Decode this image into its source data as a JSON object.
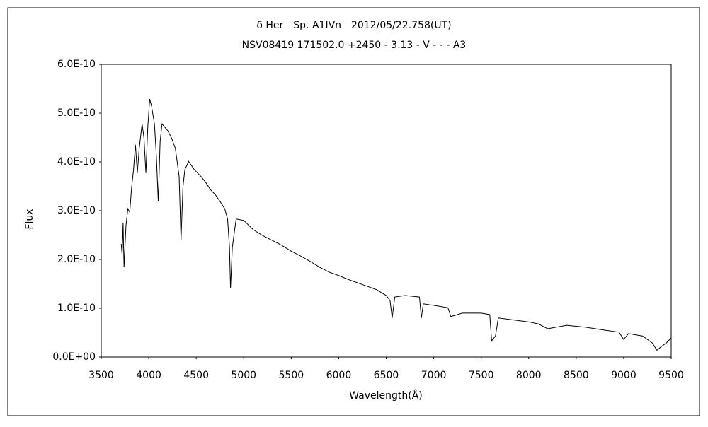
{
  "chart_data": {
    "type": "line",
    "title": "δ Her　Sp. A1IVn　2012/05/22.758(UT)",
    "subtitle": "NSV08419 171502.0 +2450 - 3.13 - V - - - A3",
    "xlabel": "Wavelength(Å)",
    "ylabel": "Flux",
    "color": "#000000",
    "grid": false,
    "xlim": [
      3500,
      9500
    ],
    "xticks": [
      3500,
      4000,
      4500,
      5000,
      5500,
      6000,
      6500,
      7000,
      7500,
      8000,
      8500,
      9000,
      9500
    ],
    "ylim": [
      0,
      6e-10
    ],
    "yticks": [
      {
        "value": 0,
        "label": "0.0E+00"
      },
      {
        "value": 1e-10,
        "label": "1.0E-10"
      },
      {
        "value": 2e-10,
        "label": "2.0E-10"
      },
      {
        "value": 3e-10,
        "label": "3.0E-10"
      },
      {
        "value": 4e-10,
        "label": "4.0E-10"
      },
      {
        "value": 5e-10,
        "label": "5.0E-10"
      },
      {
        "value": 6e-10,
        "label": "6.0E-10"
      }
    ],
    "x": [
      3710,
      3720,
      3730,
      3740,
      3760,
      3780,
      3800,
      3820,
      3840,
      3860,
      3880,
      3900,
      3930,
      3950,
      3970,
      3990,
      4010,
      4030,
      4060,
      4080,
      4100,
      4120,
      4140,
      4170,
      4200,
      4240,
      4280,
      4320,
      4340,
      4360,
      4380,
      4420,
      4480,
      4550,
      4600,
      4650,
      4700,
      4750,
      4800,
      4830,
      4850,
      4861,
      4880,
      4920,
      5000,
      5100,
      5200,
      5300,
      5400,
      5500,
      5600,
      5700,
      5800,
      5900,
      6000,
      6100,
      6200,
      6300,
      6400,
      6500,
      6540,
      6563,
      6590,
      6700,
      6850,
      6870,
      6890,
      7000,
      7150,
      7180,
      7250,
      7300,
      7500,
      7590,
      7610,
      7650,
      7680,
      7800,
      8000,
      8100,
      8200,
      8400,
      8600,
      8800,
      8950,
      9000,
      9050,
      9200,
      9300,
      9350,
      9400,
      9450,
      9500
    ],
    "values": [
      2.32e-10,
      2.1e-10,
      2.75e-10,
      1.84e-10,
      2.68e-10,
      3.04e-10,
      2.97e-10,
      3.48e-10,
      3.84e-10,
      4.35e-10,
      3.77e-10,
      4.28e-10,
      4.78e-10,
      4.49e-10,
      3.77e-10,
      4.71e-10,
      5.29e-10,
      5.14e-10,
      4.78e-10,
      4.13e-10,
      3.19e-10,
      4.42e-10,
      4.78e-10,
      4.71e-10,
      4.64e-10,
      4.49e-10,
      4.28e-10,
      3.7e-10,
      2.39e-10,
      3.48e-10,
      3.84e-10,
      4.01e-10,
      3.84e-10,
      3.7e-10,
      3.58e-10,
      3.43e-10,
      3.33e-10,
      3.19e-10,
      3.04e-10,
      2.83e-10,
      2.25e-10,
      1.41e-10,
      2.25e-10,
      2.83e-10,
      2.8e-10,
      2.61e-10,
      2.49e-10,
      2.39e-10,
      2.29e-10,
      2.17e-10,
      2.07e-10,
      1.96e-10,
      1.84e-10,
      1.74e-10,
      1.67e-10,
      1.59e-10,
      1.52e-10,
      1.45e-10,
      1.38e-10,
      1.26e-10,
      1.16e-10,
      8e-11,
      1.23e-10,
      1.26e-10,
      1.23e-10,
      8e-11,
      1.09e-10,
      1.06e-10,
      1.01e-10,
      8.3e-11,
      8.7e-11,
      9e-11,
      9e-11,
      8.7e-11,
      3.3e-11,
      4.3e-11,
      8e-11,
      7.7e-11,
      7.2e-11,
      6.8e-11,
      5.8e-11,
      6.5e-11,
      6.1e-11,
      5.5e-11,
      5.1e-11,
      3.6e-11,
      4.8e-11,
      4.3e-11,
      2.9e-11,
      1.4e-11,
      2.2e-11,
      2.9e-11,
      3.9e-11
    ]
  }
}
